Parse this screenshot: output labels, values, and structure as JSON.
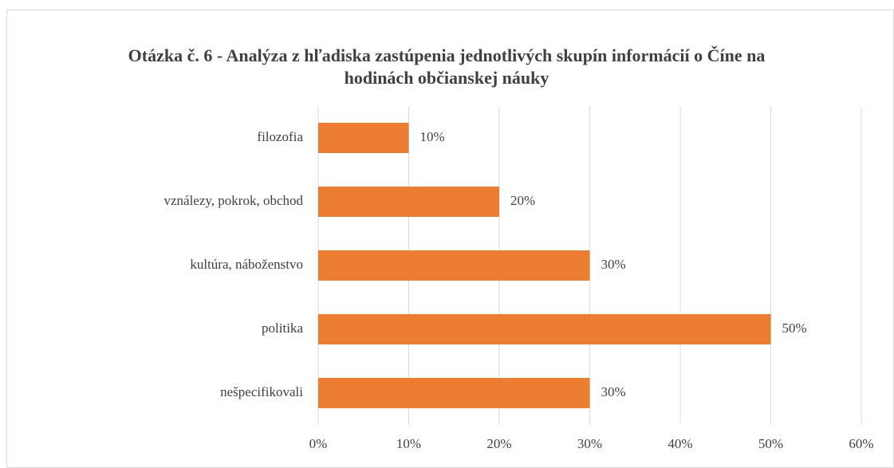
{
  "chart_data": {
    "type": "barh",
    "title": "Otázka č. 6 - Analýza z hľadiska zastúpenia jednotlivých skupín informácií o Číne na hodinách občianskej náuky",
    "categories": [
      "filozofia",
      "vználezy, pokrok, obchod",
      "kultúra, náboženstvo",
      "politika",
      "nešpecifikovali"
    ],
    "values": [
      10,
      20,
      30,
      50,
      30
    ],
    "value_labels": [
      "10%",
      "20%",
      "30%",
      "50%",
      "30%"
    ],
    "color": "#ed7d31",
    "xlim": [
      0,
      60
    ],
    "xticks": [
      {
        "value": 0,
        "label": "0%"
      },
      {
        "value": 10,
        "label": "10%"
      },
      {
        "value": 20,
        "label": "20%"
      },
      {
        "value": 30,
        "label": "30%"
      },
      {
        "value": 40,
        "label": "40%"
      },
      {
        "value": 50,
        "label": "50%"
      },
      {
        "value": 60,
        "label": "60%"
      }
    ],
    "grid": true
  }
}
